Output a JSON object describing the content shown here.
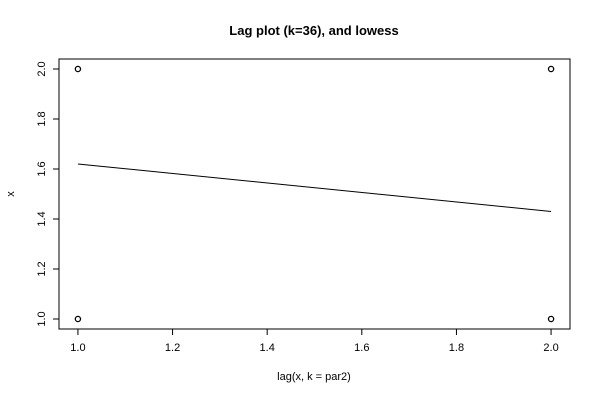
{
  "chart_data": {
    "type": "scatter",
    "title": "Lag plot (k=36), and lowess",
    "xlabel": "lag(x, k = par2)",
    "ylabel": "x",
    "xlim": [
      0.96,
      2.04
    ],
    "ylim": [
      0.96,
      2.04
    ],
    "xticks": [
      1.0,
      1.2,
      1.4,
      1.6,
      1.8,
      2.0
    ],
    "yticks": [
      1.0,
      1.2,
      1.4,
      1.6,
      1.8,
      2.0
    ],
    "xtick_labels": [
      "1.0",
      "1.2",
      "1.4",
      "1.6",
      "1.8",
      "2.0"
    ],
    "ytick_labels": [
      "1.0",
      "1.2",
      "1.4",
      "1.6",
      "1.8",
      "2.0"
    ],
    "points": [
      {
        "x": 1.0,
        "y": 1.0
      },
      {
        "x": 1.0,
        "y": 2.0
      },
      {
        "x": 2.0,
        "y": 1.0
      },
      {
        "x": 2.0,
        "y": 2.0
      }
    ],
    "lowess": [
      {
        "x": 1.0,
        "y": 1.62
      },
      {
        "x": 2.0,
        "y": 1.43
      }
    ],
    "grid": false,
    "colors": {
      "points": "#000000",
      "line": "#000000",
      "axes": "#000000"
    }
  }
}
